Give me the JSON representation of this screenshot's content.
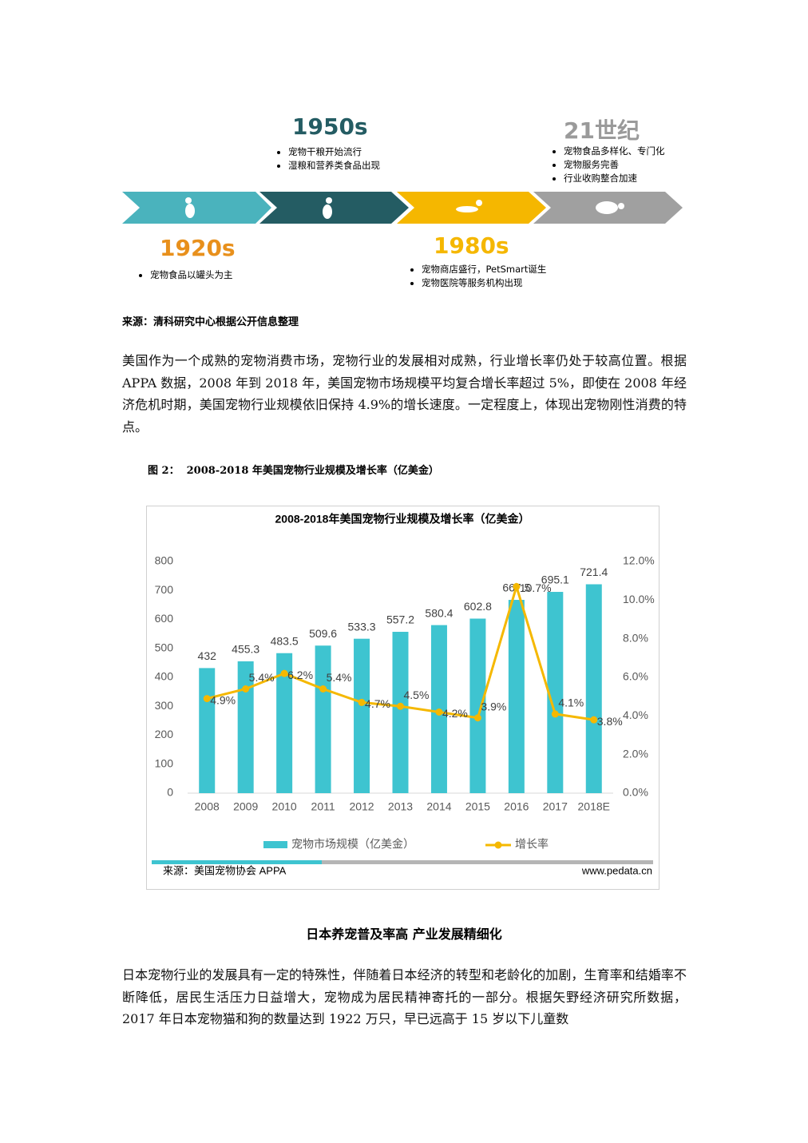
{
  "timeline": {
    "eras": [
      {
        "label": "1920s",
        "items": [
          "宠物食品以罐头为主"
        ]
      },
      {
        "label": "1950s",
        "items": [
          "宠物干粮开始流行",
          "湿粮和营养类食品出现"
        ]
      },
      {
        "label": "1980s",
        "items": [
          "宠物商店盛行，PetSmart诞生",
          "宠物医院等服务机构出现"
        ]
      },
      {
        "label": "21世纪",
        "items": [
          "宠物食品多样化、专门化",
          "宠物服务完善",
          "行业收购整合加速"
        ]
      }
    ]
  },
  "source": "来源：清科研究中心根据公开信息整理",
  "paragraph1": "美国作为一个成熟的宠物消费市场，宠物行业的发展相对成熟，行业增长率仍处于较高位置。根据 APPA 数据，2008 年到 2018 年，美国宠物市场规模平均复合增长率超过 5%，即使在 2008 年经济危机时期，美国宠物行业规模依旧保持 4.9%的增长速度。一定程度上，体现出宠物刚性消费的特点。",
  "figure_caption": "图 2：  2008-2018 年美国宠物行业规模及增长率（亿美金）",
  "chart_data": {
    "type": "bar-line",
    "title": "2008-2018年美国宠物行业规模及增长率（亿美金）",
    "categories": [
      "2008",
      "2009",
      "2010",
      "2011",
      "2012",
      "2013",
      "2014",
      "2015",
      "2016",
      "2017",
      "2018E"
    ],
    "series": [
      {
        "name": "宠物市场规模（亿美金）",
        "color": "#3ec4d0",
        "values": [
          432,
          455.3,
          483.5,
          509.6,
          533.3,
          557.2,
          580.4,
          602.8,
          667.5,
          695.1,
          721.4
        ]
      },
      {
        "name": "增长率",
        "color": "#f5b800",
        "axis": "y2",
        "values": [
          4.9,
          5.4,
          6.2,
          5.4,
          4.7,
          4.5,
          4.2,
          3.9,
          10.7,
          4.1,
          3.8
        ],
        "value_labels": [
          "4.9%",
          "5.4%",
          "6.2%",
          "5.4%",
          "4.7%",
          "4.5%",
          "4.2%",
          "3.9%",
          "10.7%",
          "4.1%",
          "3.8%"
        ]
      }
    ],
    "ylim": [
      0,
      800
    ],
    "yticks": [
      0,
      100,
      200,
      300,
      400,
      500,
      600,
      700,
      800
    ],
    "y2lim": [
      0,
      12
    ],
    "y2ticks": [
      {
        "value": 0,
        "label": "0.0%"
      },
      {
        "value": 2,
        "label": "2.0%"
      },
      {
        "value": 4,
        "label": "4.0%"
      },
      {
        "value": 6,
        "label": "6.0%"
      },
      {
        "value": 8,
        "label": "8.0%"
      },
      {
        "value": 10,
        "label": "10.0%"
      },
      {
        "value": 12,
        "label": "12.0%"
      }
    ],
    "source": "来源：美国宠物协会 APPA",
    "website": "www.pedata.cn"
  },
  "heading": "日本养宠普及率高 产业发展精细化",
  "paragraph2": "日本宠物行业的发展具有一定的特殊性，伴随着日本经济的转型和老龄化的加剧，生育率和结婚率不断降低，居民生活压力日益增大，宠物成为居民精神寄托的一部分。根据矢野经济研究所数据，2017 年日本宠物猫和狗的数量达到 1922 万只，早已远高于 15 岁以下儿童数"
}
